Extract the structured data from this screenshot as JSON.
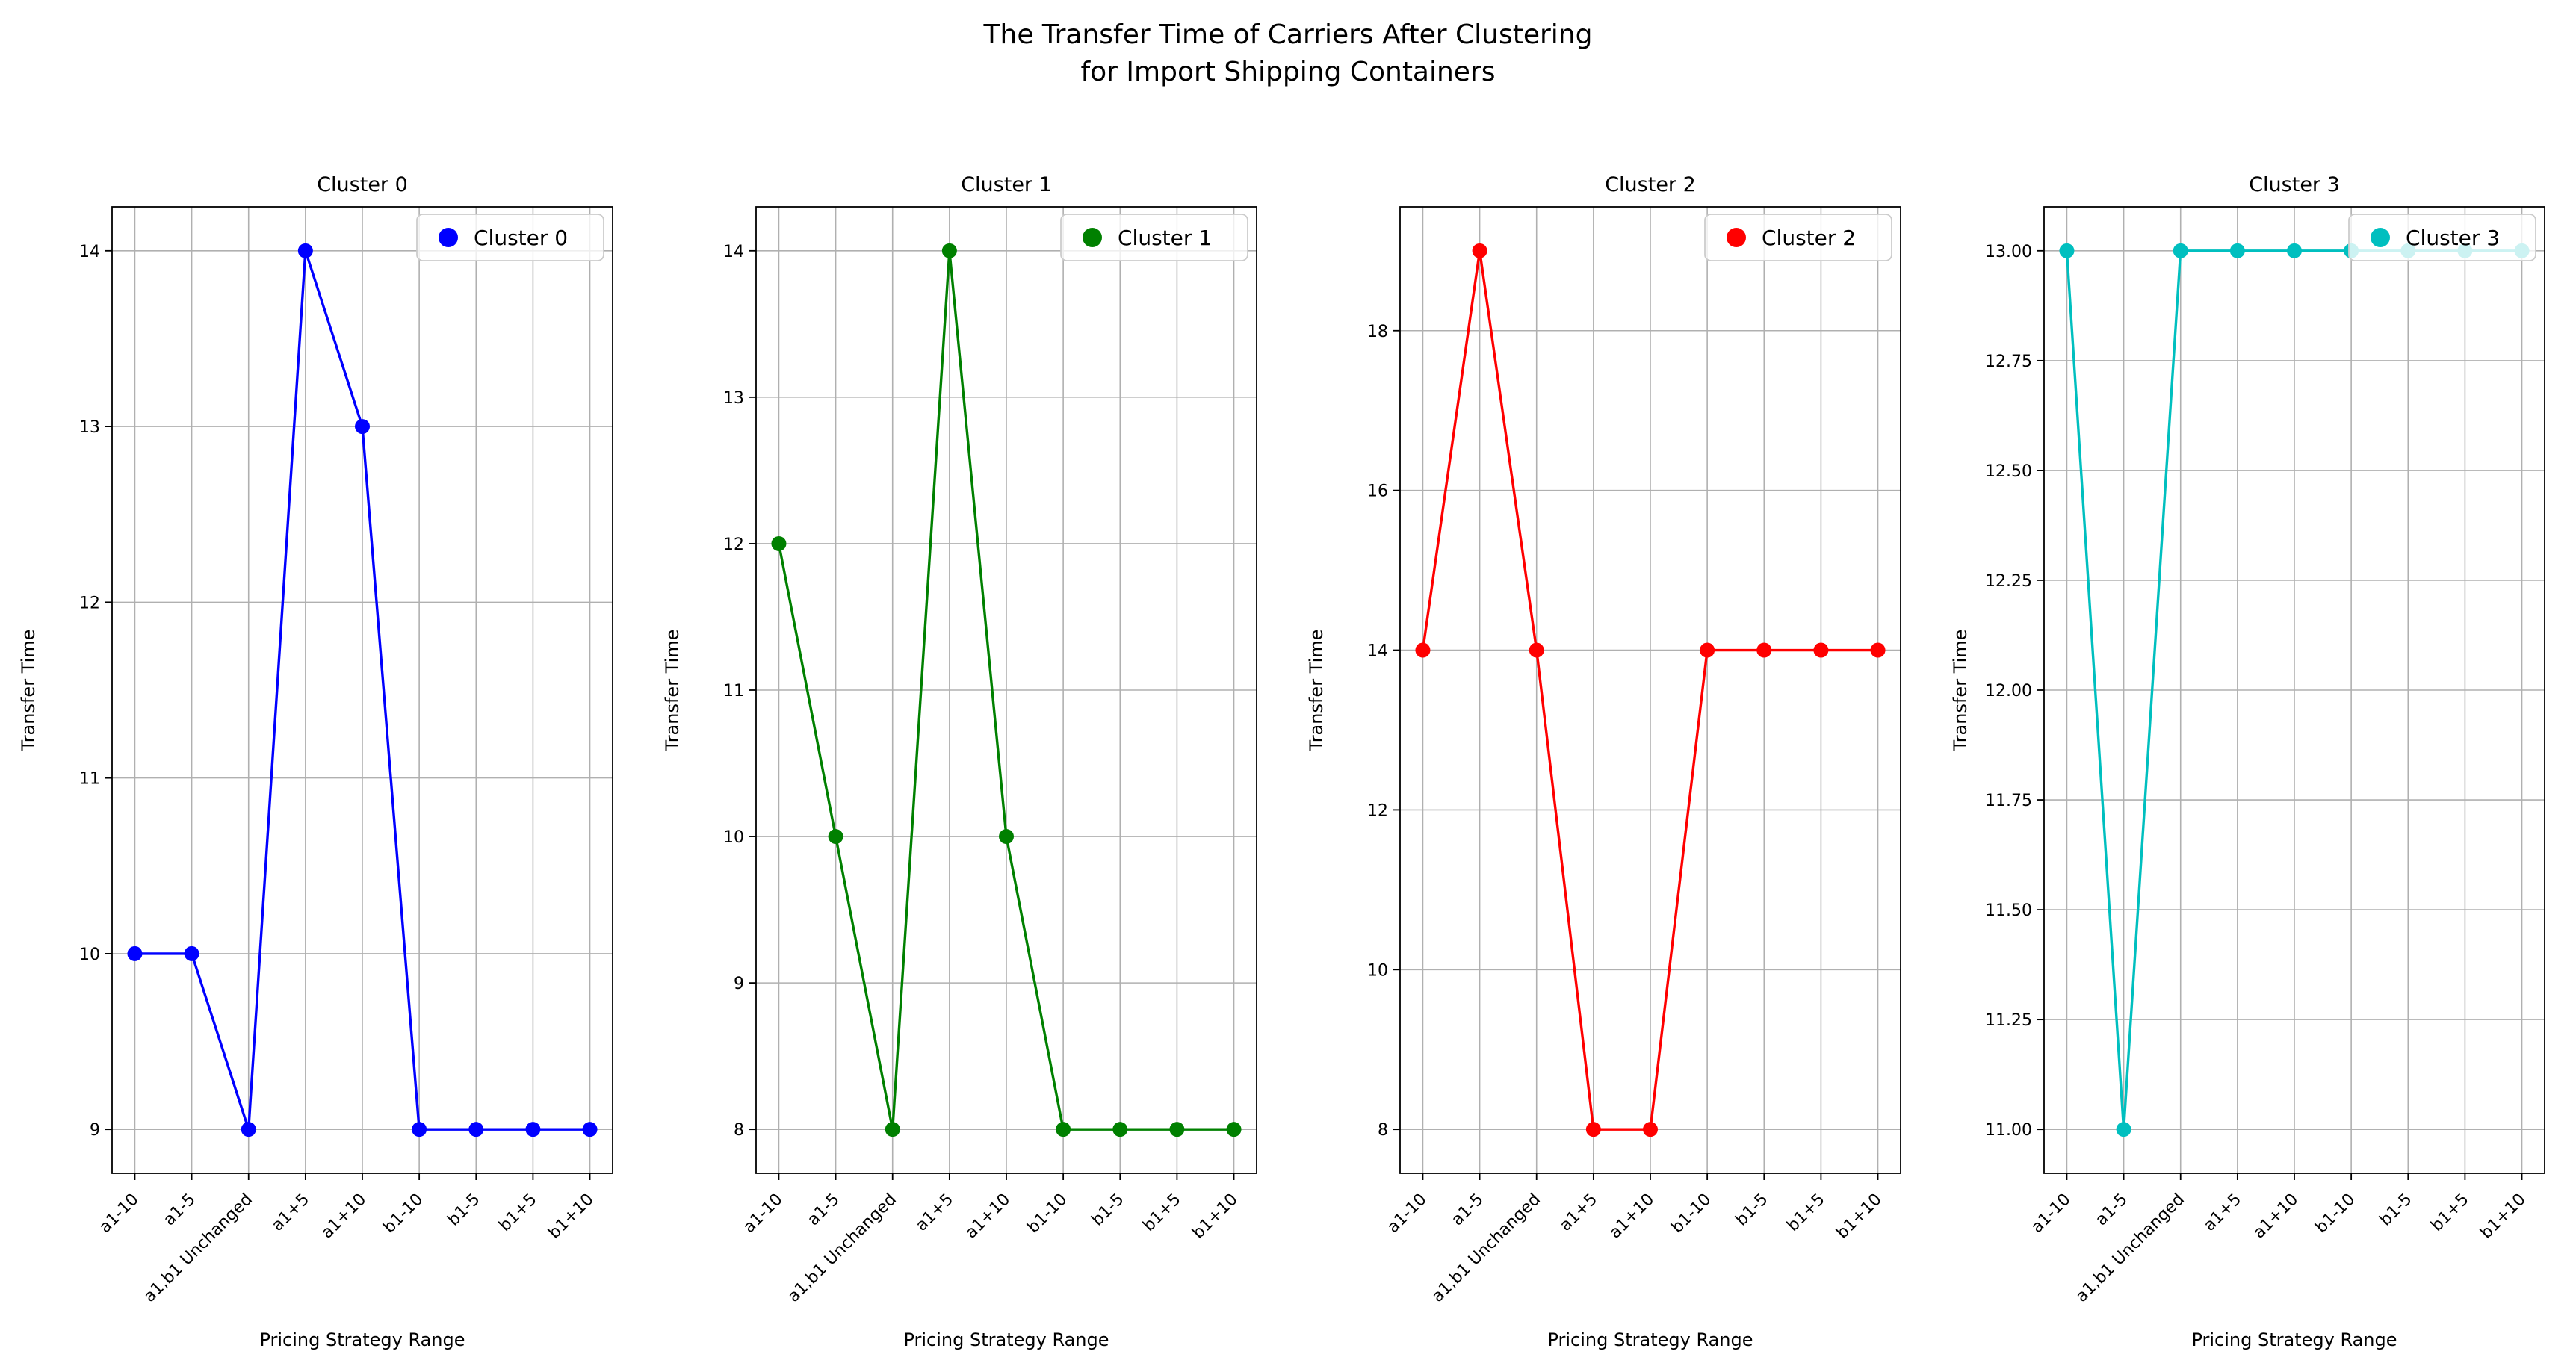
{
  "figure": {
    "title": "The Transfer Time of Carriers After Clustering\nfor Import Shipping Containers"
  },
  "chart_data": [
    {
      "type": "line",
      "title": "Cluster 0",
      "legend_label": "Cluster 0",
      "legend_position": "upper right",
      "color": "#0000ff",
      "xlabel": "Pricing Strategy Range",
      "ylabel": "Transfer Time",
      "grid": true,
      "categories": [
        "a1-10",
        "a1-5",
        "a1,b1 Unchanged",
        "a1+5",
        "a1+10",
        "b1-10",
        "b1-5",
        "b1+5",
        "b1+10"
      ],
      "values": [
        10,
        10,
        9,
        14,
        13,
        9,
        9,
        9,
        9
      ],
      "ylim": [
        8.75,
        14.25
      ],
      "ytick_values": [
        9,
        10,
        11,
        12,
        13,
        14
      ],
      "ytick_labels": [
        "9",
        "10",
        "11",
        "12",
        "13",
        "14"
      ]
    },
    {
      "type": "line",
      "title": "Cluster 1",
      "legend_label": "Cluster 1",
      "legend_position": "upper right",
      "color": "#008000",
      "xlabel": "Pricing Strategy Range",
      "ylabel": "Transfer Time",
      "grid": true,
      "categories": [
        "a1-10",
        "a1-5",
        "a1,b1 Unchanged",
        "a1+5",
        "a1+10",
        "b1-10",
        "b1-5",
        "b1+5",
        "b1+10"
      ],
      "values": [
        12,
        10,
        8,
        14,
        10,
        8,
        8,
        8,
        8
      ],
      "ylim": [
        7.7,
        14.3
      ],
      "ytick_values": [
        8,
        9,
        10,
        11,
        12,
        13,
        14
      ],
      "ytick_labels": [
        "8",
        "9",
        "10",
        "11",
        "12",
        "13",
        "14"
      ]
    },
    {
      "type": "line",
      "title": "Cluster 2",
      "legend_label": "Cluster 2",
      "legend_position": "upper right",
      "color": "#ff0000",
      "xlabel": "Pricing Strategy Range",
      "ylabel": "Transfer Time",
      "grid": true,
      "categories": [
        "a1-10",
        "a1-5",
        "a1,b1 Unchanged",
        "a1+5",
        "a1+10",
        "b1-10",
        "b1-5",
        "b1+5",
        "b1+10"
      ],
      "values": [
        14,
        19,
        14,
        8,
        8,
        14,
        14,
        14,
        14
      ],
      "ylim": [
        7.45,
        19.55
      ],
      "ytick_values": [
        8,
        10,
        12,
        14,
        16,
        18
      ],
      "ytick_labels": [
        "8",
        "10",
        "12",
        "14",
        "16",
        "18"
      ]
    },
    {
      "type": "line",
      "title": "Cluster 3",
      "legend_label": "Cluster 3",
      "legend_position": "upper right",
      "color": "#00bfbf",
      "xlabel": "Pricing Strategy Range",
      "ylabel": "Transfer Time",
      "grid": true,
      "categories": [
        "a1-10",
        "a1-5",
        "a1,b1 Unchanged",
        "a1+5",
        "a1+10",
        "b1-10",
        "b1-5",
        "b1+5",
        "b1+10"
      ],
      "values": [
        13,
        11,
        13,
        13,
        13,
        13,
        13,
        13,
        13
      ],
      "ylim": [
        10.9,
        13.1
      ],
      "ytick_values": [
        11,
        11.25,
        11.5,
        11.75,
        12,
        12.25,
        12.5,
        12.75,
        13
      ],
      "ytick_labels": [
        "11.00",
        "11.25",
        "11.50",
        "11.75",
        "12.00",
        "12.25",
        "12.50",
        "12.75",
        "13.00"
      ]
    }
  ]
}
